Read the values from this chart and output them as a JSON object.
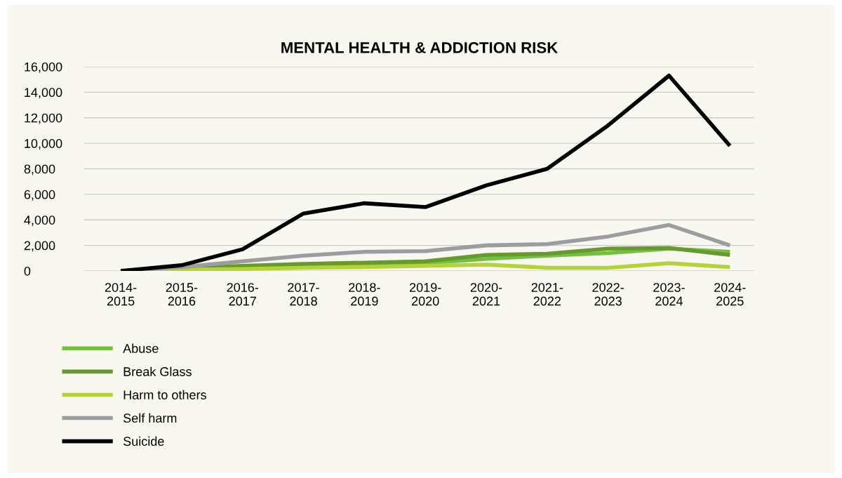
{
  "chart_data": {
    "type": "line",
    "title": "MENTAL HEALTH & ADDICTION RISK",
    "categories": [
      "2014-\n2015",
      "2015-\n2016",
      "2016-\n2017",
      "2017-\n2018",
      "2018-\n2019",
      "2019-\n2020",
      "2020-\n2021",
      "2021-\n2022",
      "2022-\n2023",
      "2023-\n2024",
      "2024-\n2025"
    ],
    "series": [
      {
        "name": "Abuse",
        "color": "#74c043",
        "values": [
          0,
          150,
          250,
          350,
          450,
          600,
          950,
          1200,
          1400,
          1750,
          1500
        ]
      },
      {
        "name": "Break Glass",
        "color": "#66992e",
        "values": [
          0,
          200,
          400,
          550,
          650,
          750,
          1250,
          1350,
          1750,
          1800,
          1250
        ]
      },
      {
        "name": "Harm to others",
        "color": "#b5d334",
        "values": [
          0,
          100,
          150,
          250,
          300,
          400,
          500,
          250,
          250,
          600,
          300
        ]
      },
      {
        "name": "Self harm",
        "color": "#9d9d9f",
        "values": [
          0,
          300,
          750,
          1200,
          1500,
          1550,
          2000,
          2100,
          2700,
          3600,
          2000
        ]
      },
      {
        "name": "Suicide",
        "color": "#000000",
        "values": [
          0,
          450,
          1700,
          4500,
          5300,
          5000,
          6700,
          8000,
          11400,
          15300,
          9800
        ]
      }
    ],
    "ylim": [
      0,
      16000
    ],
    "yticks": [
      {
        "value": 0,
        "label": "0"
      },
      {
        "value": 2000,
        "label": "2,000"
      },
      {
        "value": 4000,
        "label": "4,000"
      },
      {
        "value": 6000,
        "label": "6,000"
      },
      {
        "value": 8000,
        "label": "8,000"
      },
      {
        "value": 10000,
        "label": "10,000"
      },
      {
        "value": 12000,
        "label": "12,000"
      },
      {
        "value": 14000,
        "label": "14,000"
      },
      {
        "value": 16000,
        "label": "16,000"
      }
    ],
    "grid": "y",
    "legend": "bottom left",
    "marker": "none",
    "line_style": "solid"
  }
}
